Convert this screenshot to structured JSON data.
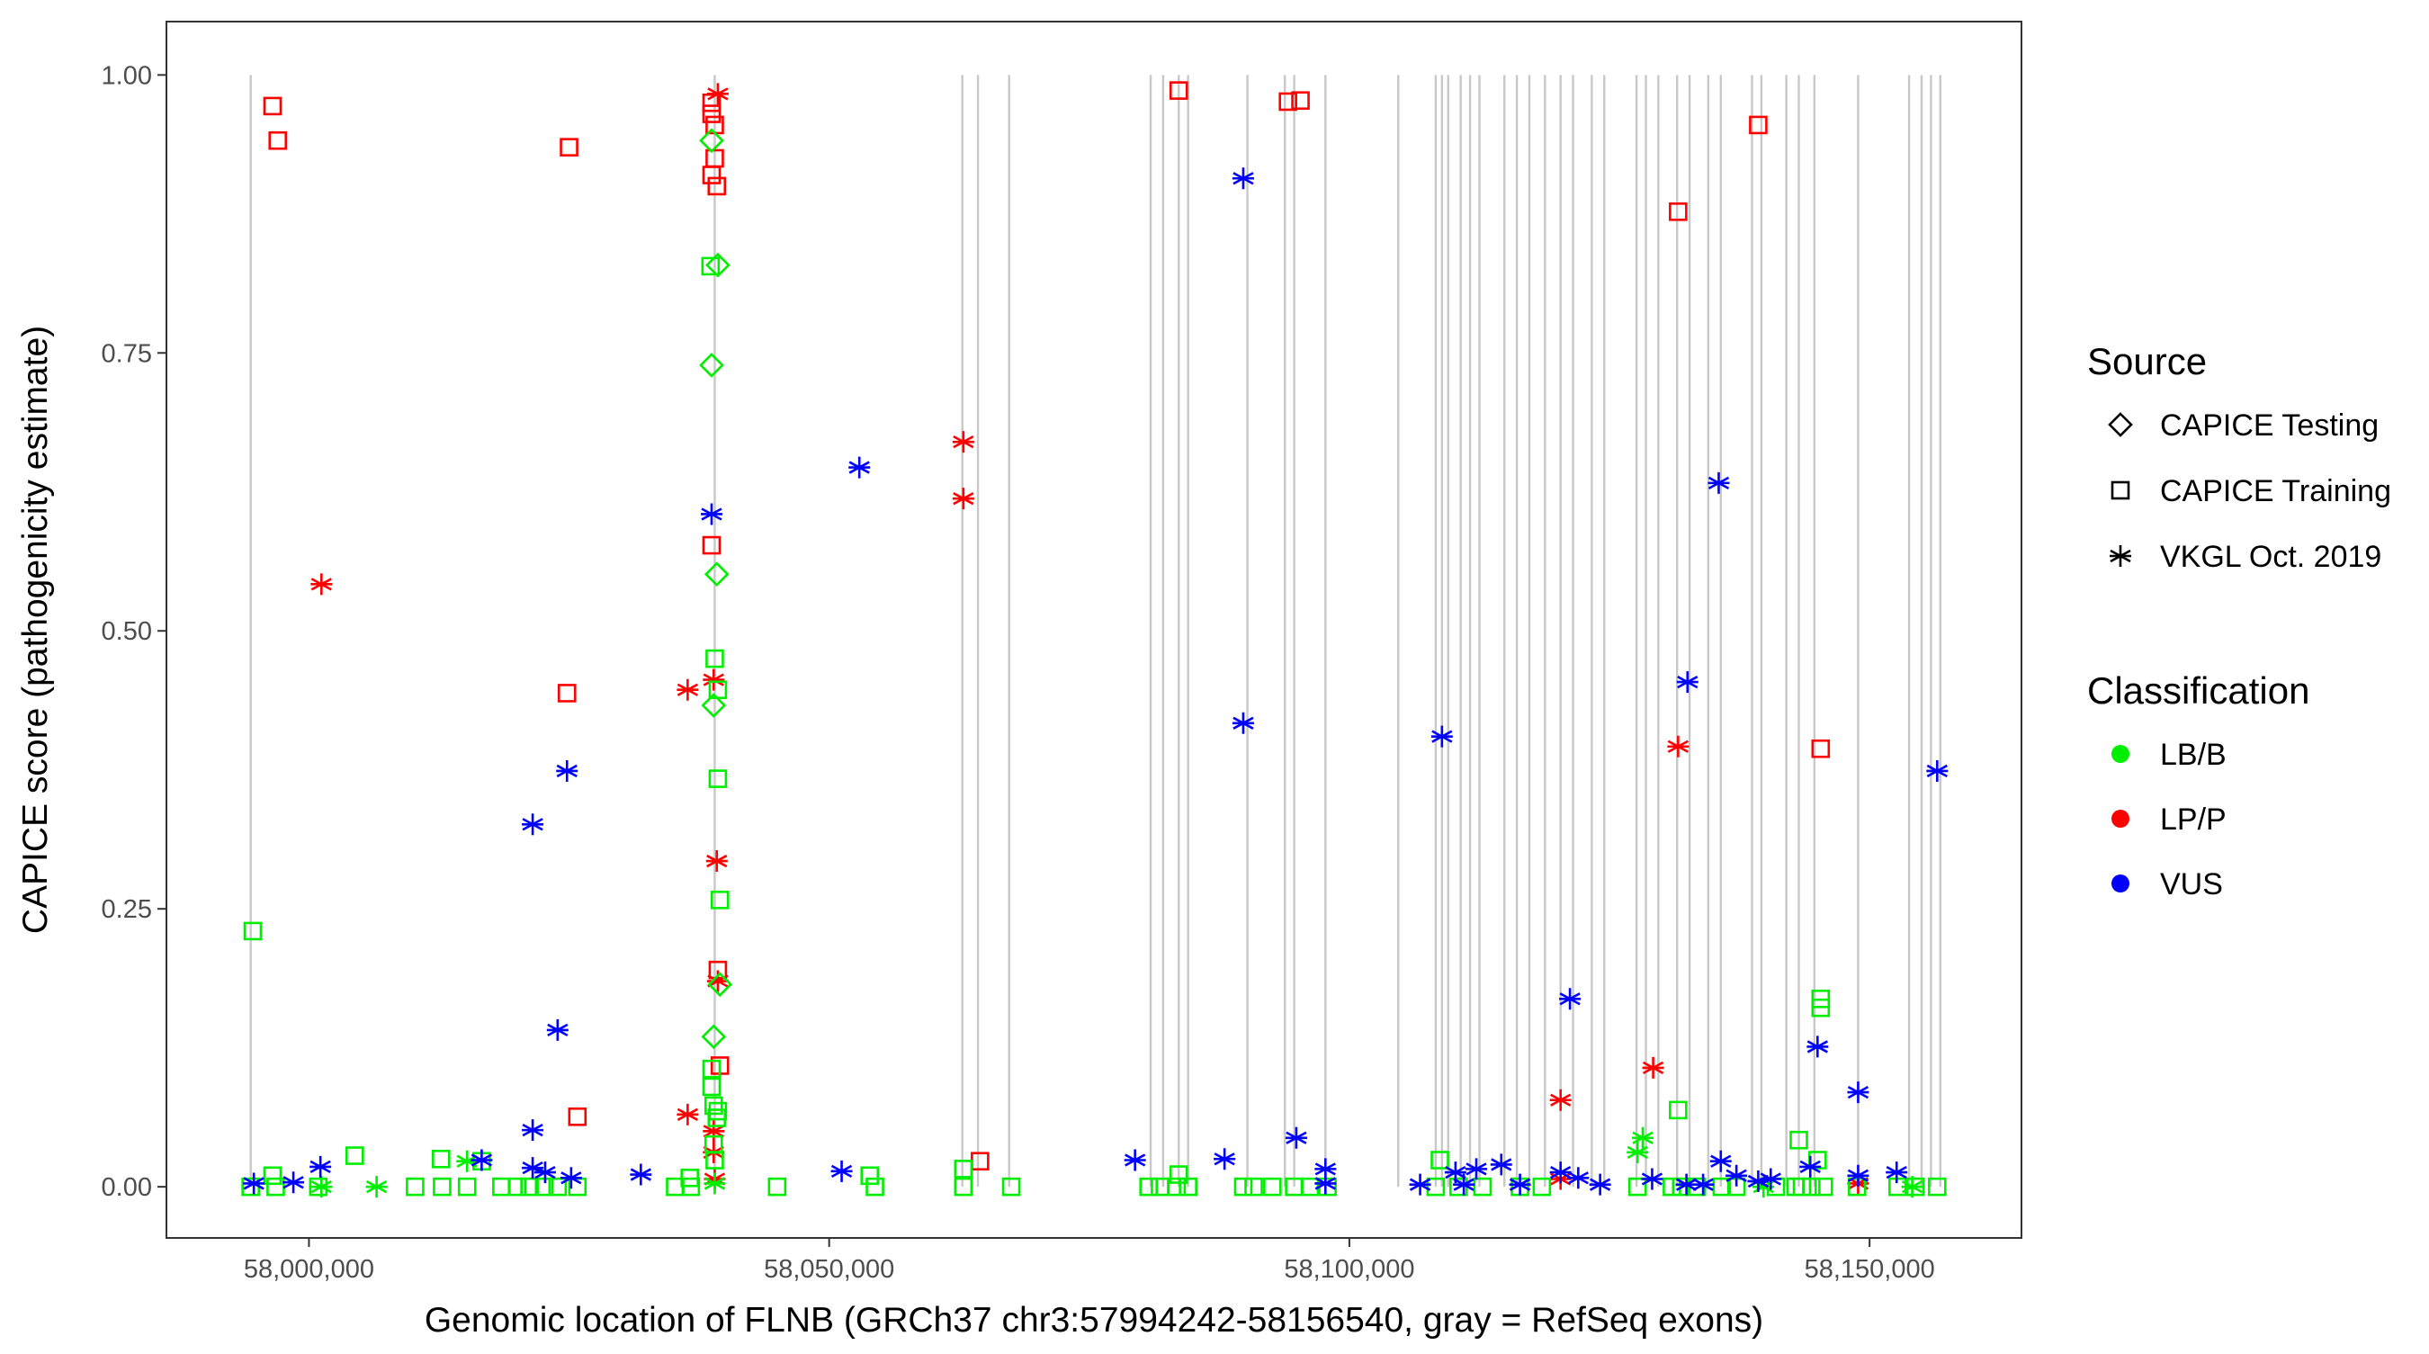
{
  "chart_data": {
    "type": "scatter",
    "title": "",
    "xlabel": "Genomic location of FLNB (GRCh37 chr3:57994242-58156540, gray = RefSeq exons)",
    "ylabel": "CAPICE score (pathogenicity estimate)",
    "xlim": [
      57986300,
      58164600
    ],
    "ylim": [
      -0.046,
      1.048
    ],
    "x_ticks": [
      58000000,
      58050000,
      58100000,
      58150000
    ],
    "x_tick_labels": [
      "58,000,000",
      "58,050,000",
      "58,100,000",
      "58,150,000"
    ],
    "y_ticks": [
      0,
      0.25,
      0.5,
      0.75,
      1.0
    ],
    "y_tick_labels": [
      "0.00",
      "0.25",
      "0.50",
      "0.75",
      "1.00"
    ],
    "grid": false,
    "legend_placement": "right",
    "legend": {
      "source_title": "Source",
      "sources": [
        {
          "label": "CAPICE Testing",
          "shape": "diamond"
        },
        {
          "label": "CAPICE Training",
          "shape": "square"
        },
        {
          "label": "VKGL Oct. 2019",
          "shape": "asterisk"
        }
      ],
      "class_title": "Classification",
      "classes": [
        {
          "label": "LB/B",
          "color": "#00ee00"
        },
        {
          "label": "LP/P",
          "color": "#ff0000"
        },
        {
          "label": "VUS",
          "color": "#0000ff"
        }
      ]
    },
    "exon_color": "#c8c8c8",
    "exons": [
      57994400,
      58039000,
      58062800,
      58064300,
      58067300,
      58080900,
      58082100,
      58083600,
      58084500,
      58090200,
      58093800,
      58094700,
      58097700,
      58104700,
      58108300,
      58108900,
      58109500,
      58110700,
      58111600,
      58112500,
      58114900,
      58116100,
      58117300,
      58118800,
      58120300,
      58121500,
      58123300,
      58124500,
      58127600,
      58128500,
      58129700,
      58131500,
      58132700,
      58134500,
      58135700,
      58138700,
      58139600,
      58142000,
      58143200,
      58144700,
      58148900,
      58153800,
      58155000,
      58155900,
      58156800
    ],
    "point_fields": [
      "position",
      "score",
      "source_index",
      "class_index"
    ],
    "points": [
      [
        57996500,
        0.972,
        1,
        1
      ],
      [
        57997000,
        0.941,
        1,
        1
      ],
      [
        58025000,
        0.935,
        1,
        1
      ],
      [
        58024800,
        0.444,
        1,
        1
      ],
      [
        58025800,
        0.063,
        1,
        1
      ],
      [
        58038700,
        0.975,
        1,
        1
      ],
      [
        58038700,
        0.965,
        1,
        1
      ],
      [
        58039000,
        0.955,
        1,
        1
      ],
      [
        58039000,
        0.925,
        1,
        1
      ],
      [
        58038700,
        0.91,
        1,
        1
      ],
      [
        58039200,
        0.9,
        1,
        1
      ],
      [
        58038700,
        0.577,
        1,
        1
      ],
      [
        58039300,
        0.195,
        1,
        1
      ],
      [
        58039500,
        0.109,
        1,
        1
      ],
      [
        58064500,
        0.023,
        1,
        1
      ],
      [
        58083600,
        0.986,
        1,
        1
      ],
      [
        58094100,
        0.976,
        1,
        1
      ],
      [
        58095300,
        0.977,
        1,
        1
      ],
      [
        58131600,
        0.877,
        1,
        1
      ],
      [
        58139300,
        0.955,
        1,
        1
      ],
      [
        58145300,
        0.394,
        1,
        1
      ],
      [
        58001200,
        0.542,
        2,
        1
      ],
      [
        58036400,
        0.447,
        2,
        1
      ],
      [
        58038900,
        0.456,
        2,
        1
      ],
      [
        58039200,
        0.293,
        2,
        1
      ],
      [
        58039300,
        0.185,
        2,
        1
      ],
      [
        58036400,
        0.065,
        2,
        1
      ],
      [
        58038900,
        0.05,
        2,
        1
      ],
      [
        58038900,
        0.031,
        2,
        1
      ],
      [
        58039000,
        0.007,
        2,
        1
      ],
      [
        58039300,
        0.983,
        2,
        1
      ],
      [
        58062900,
        0.67,
        2,
        1
      ],
      [
        58062900,
        0.619,
        2,
        1
      ],
      [
        58120300,
        0.078,
        2,
        1
      ],
      [
        58120300,
        0.007,
        2,
        1
      ],
      [
        58129200,
        0.107,
        2,
        1
      ],
      [
        58131600,
        0.396,
        2,
        1
      ],
      [
        58148900,
        0.003,
        2,
        1
      ],
      [
        58038700,
        0.941,
        0,
        0
      ],
      [
        58039300,
        0.829,
        0,
        0
      ],
      [
        58038700,
        0.739,
        0,
        0
      ],
      [
        58039200,
        0.551,
        0,
        0
      ],
      [
        58038900,
        0.433,
        0,
        0
      ],
      [
        58038900,
        0.135,
        0,
        0
      ],
      [
        58039500,
        0.182,
        0,
        0
      ],
      [
        57994600,
        0.23,
        1,
        0
      ],
      [
        58038600,
        0.828,
        1,
        0
      ],
      [
        58039000,
        0.475,
        1,
        0
      ],
      [
        58039300,
        0.447,
        1,
        0
      ],
      [
        58039300,
        0.367,
        1,
        0
      ],
      [
        58039500,
        0.258,
        1,
        0
      ],
      [
        58038700,
        0.106,
        1,
        0
      ],
      [
        58038700,
        0.09,
        1,
        0
      ],
      [
        58038900,
        0.073,
        1,
        0
      ],
      [
        58039300,
        0.068,
        1,
        0
      ],
      [
        58039200,
        0.062,
        1,
        0
      ],
      [
        58038900,
        0.038,
        1,
        0
      ],
      [
        58039000,
        0.024,
        1,
        0
      ],
      [
        58004400,
        0.028,
        1,
        0
      ],
      [
        58012700,
        0.025,
        1,
        0
      ],
      [
        58016600,
        0.023,
        1,
        0
      ],
      [
        58062900,
        0.016,
        1,
        0
      ],
      [
        58083600,
        0.011,
        1,
        0
      ],
      [
        58108700,
        0.024,
        1,
        0
      ],
      [
        58131600,
        0.069,
        1,
        0
      ],
      [
        58143200,
        0.042,
        1,
        0
      ],
      [
        58145300,
        0.169,
        1,
        0
      ],
      [
        58145300,
        0.161,
        1,
        0
      ],
      [
        58145000,
        0.024,
        1,
        0
      ],
      [
        58053900,
        0.01,
        1,
        0
      ],
      [
        58036600,
        0.008,
        1,
        0
      ],
      [
        57996500,
        0.01,
        1,
        0
      ],
      [
        57994400,
        0,
        1,
        0
      ],
      [
        57996800,
        0,
        1,
        0
      ],
      [
        58000900,
        0,
        1,
        0
      ],
      [
        58010200,
        0,
        1,
        0
      ],
      [
        58012800,
        0,
        1,
        0
      ],
      [
        58015200,
        0,
        1,
        0
      ],
      [
        58018500,
        0,
        1,
        0
      ],
      [
        58020000,
        0,
        1,
        0
      ],
      [
        58021200,
        0,
        1,
        0
      ],
      [
        58022600,
        0,
        1,
        0
      ],
      [
        58023900,
        0,
        1,
        0
      ],
      [
        58025800,
        0,
        1,
        0
      ],
      [
        58035200,
        0,
        1,
        0
      ],
      [
        58036700,
        0,
        1,
        0
      ],
      [
        58045000,
        0,
        1,
        0
      ],
      [
        58054400,
        0,
        1,
        0
      ],
      [
        58062900,
        0,
        1,
        0
      ],
      [
        58067500,
        0,
        1,
        0
      ],
      [
        58080700,
        0,
        1,
        0
      ],
      [
        58081800,
        0,
        1,
        0
      ],
      [
        58083400,
        0,
        1,
        0
      ],
      [
        58084500,
        0,
        1,
        0
      ],
      [
        58089800,
        0,
        1,
        0
      ],
      [
        58090800,
        0,
        1,
        0
      ],
      [
        58092600,
        0,
        1,
        0
      ],
      [
        58094700,
        0,
        1,
        0
      ],
      [
        58096200,
        0,
        1,
        0
      ],
      [
        58097900,
        0,
        1,
        0
      ],
      [
        58108300,
        0,
        1,
        0
      ],
      [
        58110500,
        0,
        1,
        0
      ],
      [
        58112800,
        0,
        1,
        0
      ],
      [
        58116400,
        0,
        1,
        0
      ],
      [
        58118500,
        0,
        1,
        0
      ],
      [
        58127700,
        0,
        1,
        0
      ],
      [
        58131000,
        0,
        1,
        0
      ],
      [
        58131900,
        0,
        1,
        0
      ],
      [
        58133400,
        0,
        1,
        0
      ],
      [
        58135800,
        0,
        1,
        0
      ],
      [
        58137200,
        0,
        1,
        0
      ],
      [
        58141000,
        0,
        1,
        0
      ],
      [
        58142900,
        0,
        1,
        0
      ],
      [
        58143500,
        0,
        1,
        0
      ],
      [
        58144400,
        0,
        1,
        0
      ],
      [
        58145600,
        0,
        1,
        0
      ],
      [
        58148800,
        0,
        1,
        0
      ],
      [
        58152700,
        0,
        1,
        0
      ],
      [
        58154400,
        0,
        1,
        0
      ],
      [
        58156500,
        0,
        1,
        0
      ],
      [
        58006500,
        0,
        2,
        0
      ],
      [
        58001200,
        0,
        2,
        0
      ],
      [
        58015200,
        0.023,
        2,
        0
      ],
      [
        58127700,
        0.031,
        2,
        0
      ],
      [
        58128200,
        0.044,
        2,
        0
      ],
      [
        58139800,
        0,
        2,
        0
      ],
      [
        58154100,
        0,
        2,
        0
      ],
      [
        58039000,
        0.003,
        2,
        0
      ],
      [
        57994700,
        0.003,
        2,
        2
      ],
      [
        57998500,
        0.004,
        2,
        2
      ],
      [
        58001100,
        0.018,
        2,
        2
      ],
      [
        58016600,
        0.024,
        2,
        2
      ],
      [
        58021500,
        0.326,
        2,
        2
      ],
      [
        58021500,
        0.051,
        2,
        2
      ],
      [
        58021500,
        0.017,
        2,
        2
      ],
      [
        58023900,
        0.141,
        2,
        2
      ],
      [
        58024800,
        0.374,
        2,
        2
      ],
      [
        58025200,
        0.008,
        2,
        2
      ],
      [
        58022700,
        0.013,
        2,
        2
      ],
      [
        58031900,
        0.011,
        2,
        2
      ],
      [
        58038700,
        0.605,
        2,
        2
      ],
      [
        58051200,
        0.014,
        2,
        2
      ],
      [
        58052900,
        0.647,
        2,
        2
      ],
      [
        58079400,
        0.024,
        2,
        2
      ],
      [
        58088000,
        0.025,
        2,
        2
      ],
      [
        58089800,
        0.907,
        2,
        2
      ],
      [
        58089800,
        0.417,
        2,
        2
      ],
      [
        58094900,
        0.044,
        2,
        2
      ],
      [
        58097700,
        0.016,
        2,
        2
      ],
      [
        58097700,
        0.003,
        2,
        2
      ],
      [
        58106800,
        0.002,
        2,
        2
      ],
      [
        58108900,
        0.405,
        2,
        2
      ],
      [
        58110200,
        0.013,
        2,
        2
      ],
      [
        58111000,
        0.002,
        2,
        2
      ],
      [
        58112200,
        0.016,
        2,
        2
      ],
      [
        58114600,
        0.02,
        2,
        2
      ],
      [
        58116400,
        0.002,
        2,
        2
      ],
      [
        58121200,
        0.169,
        2,
        2
      ],
      [
        58120300,
        0.013,
        2,
        2
      ],
      [
        58122000,
        0.008,
        2,
        2
      ],
      [
        58124100,
        0.002,
        2,
        2
      ],
      [
        58129100,
        0.007,
        2,
        2
      ],
      [
        58132500,
        0.454,
        2,
        2
      ],
      [
        58134000,
        0.002,
        2,
        2
      ],
      [
        58135500,
        0.633,
        2,
        2
      ],
      [
        58135700,
        0.023,
        2,
        2
      ],
      [
        58137200,
        0.01,
        2,
        2
      ],
      [
        58139300,
        0.005,
        2,
        2
      ],
      [
        58140500,
        0.007,
        2,
        2
      ],
      [
        58144300,
        0.018,
        2,
        2
      ],
      [
        58145000,
        0.126,
        2,
        2
      ],
      [
        58148900,
        0.085,
        2,
        2
      ],
      [
        58148900,
        0.01,
        2,
        2
      ],
      [
        58152600,
        0.013,
        2,
        2
      ],
      [
        58156500,
        0.374,
        2,
        2
      ],
      [
        58132400,
        0.002,
        2,
        2
      ]
    ]
  }
}
